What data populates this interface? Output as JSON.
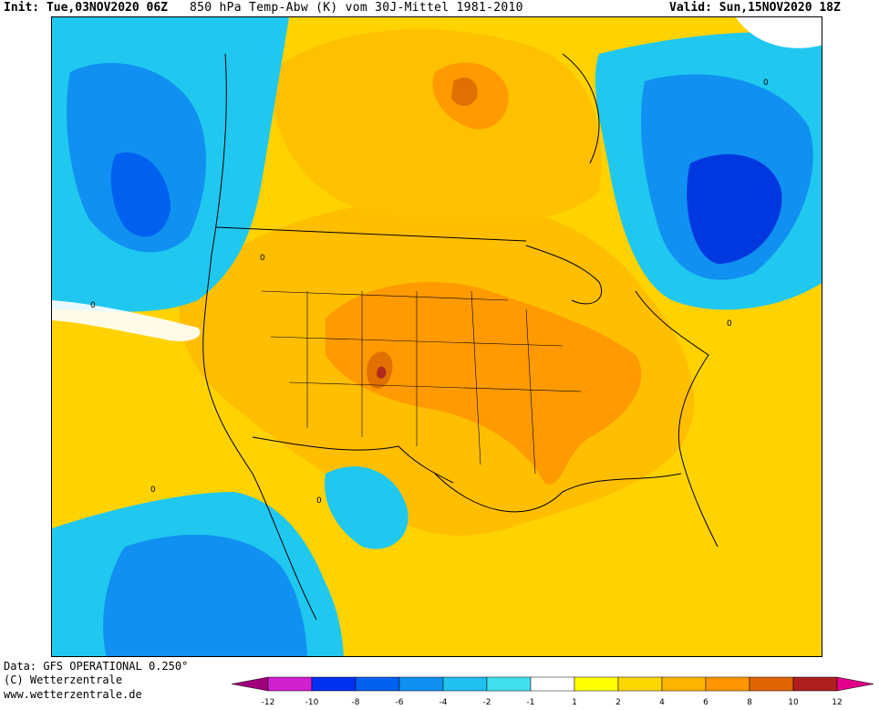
{
  "header": {
    "init": "Init: Tue,03NOV2020 06Z",
    "title": "850 hPa Temp-Abw (K) vom 30J-Mittel 1981-2010",
    "valid": "Valid: Sun,15NOV2020 18Z"
  },
  "footer": {
    "source": "Data: GFS OPERATIONAL 0.250°",
    "copyright": "(C) Wetterzentrale",
    "website": "www.wetterzentrale.de"
  },
  "map": {
    "contour_label": "0"
  },
  "legend": {
    "ticks": [
      "-12",
      "-10",
      "-8",
      "-6",
      "-4",
      "-2",
      "-1",
      "1",
      "2",
      "4",
      "6",
      "8",
      "10",
      "12"
    ],
    "colors": [
      "#a0007a",
      "#d020d0",
      "#0030f0",
      "#0060f0",
      "#1090f0",
      "#20c0f0",
      "#40e0f0",
      "#ffffff",
      "#ffff00",
      "#ffd700",
      "#ffb400",
      "#ff9600",
      "#e06400",
      "#b01e1e",
      "#e0008a"
    ]
  },
  "palette": {
    "ocean_warm": "#ffd200",
    "land_warm": "#ffbe00",
    "hot": "#ff9a00",
    "very_hot": "#e07000",
    "extreme": "#b02a1e",
    "cool": "#20c8f0",
    "cold": "#1090f0",
    "very_cold": "#0060f0",
    "coldest": "#0038e0",
    "neutral": "#ffffff"
  }
}
